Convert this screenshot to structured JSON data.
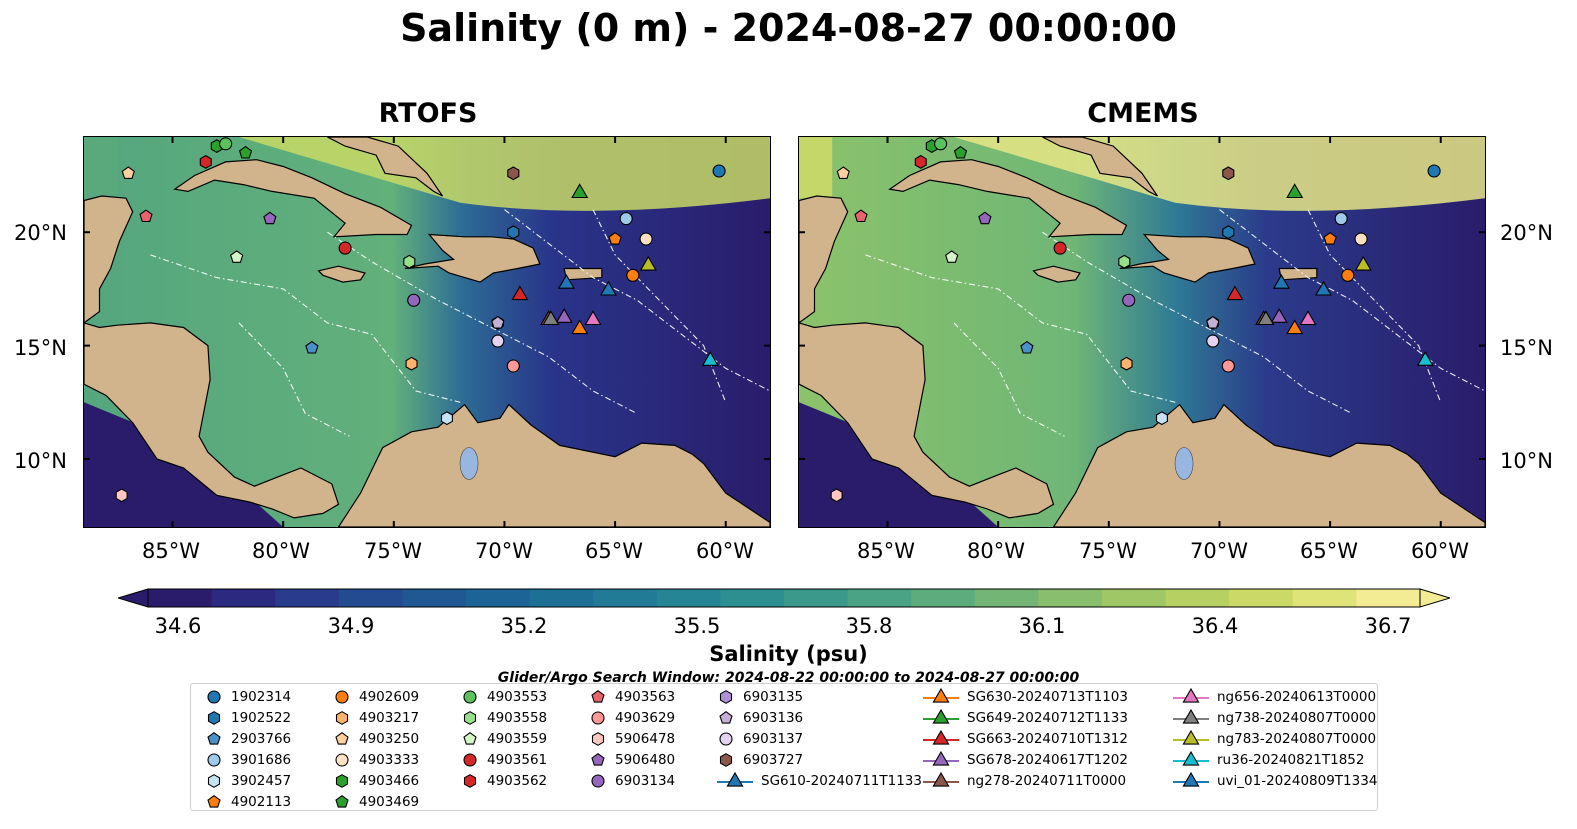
{
  "title": "Salinity (0 m) - 2024-08-27 00:00:00",
  "panels": [
    {
      "title": "RTOFS"
    },
    {
      "title": "CMEMS"
    }
  ],
  "axes": {
    "lat_labels": [
      "20°N",
      "15°N",
      "10°N"
    ],
    "lon_labels": [
      "85°W",
      "80°W",
      "75°W",
      "70°W",
      "65°W",
      "60°W"
    ]
  },
  "colorbar": {
    "label": "Salinity (psu)",
    "ticks": [
      "34.6",
      "34.9",
      "35.2",
      "35.5",
      "35.8",
      "36.1",
      "36.4",
      "36.7"
    ],
    "colors": [
      "#2a1c6b",
      "#2b2a80",
      "#283b8c",
      "#234b91",
      "#1f5893",
      "#1c6495",
      "#1d6f96",
      "#217a96",
      "#268594",
      "#2e8f90",
      "#3a998b",
      "#4aa384",
      "#5dac7d",
      "#72b574",
      "#88be6c",
      "#9fc765",
      "#b6d062",
      "#cbda66",
      "#dfe478",
      "#f3ec94"
    ]
  },
  "search_window": "Glider/Argo Search Window: 2024-08-22 00:00:00 to 2024-08-27 00:00:00",
  "legend": [
    {
      "label": "1902314",
      "marker": "circle",
      "color": "#1f77b4"
    },
    {
      "label": "1902522",
      "marker": "hexagon",
      "color": "#1f77b4"
    },
    {
      "label": "2903766",
      "marker": "pentagon",
      "color": "#4a90c9"
    },
    {
      "label": "3901686",
      "marker": "circle",
      "color": "#9ecae9"
    },
    {
      "label": "3902457",
      "marker": "hexagon",
      "color": "#c6e2f5"
    },
    {
      "label": "4902113",
      "marker": "pentagon",
      "color": "#ff7f0e"
    },
    {
      "label": "4902609",
      "marker": "circle",
      "color": "#ff7f0e"
    },
    {
      "label": "4903217",
      "marker": "hexagon",
      "color": "#ffb26b"
    },
    {
      "label": "4903250",
      "marker": "pentagon",
      "color": "#ffcfa0"
    },
    {
      "label": "4903333",
      "marker": "circle",
      "color": "#ffe0c2"
    },
    {
      "label": "4903466",
      "marker": "hexagon",
      "color": "#2ca02c"
    },
    {
      "label": "4903469",
      "marker": "pentagon",
      "color": "#2ca02c"
    },
    {
      "label": "4903553",
      "marker": "circle",
      "color": "#5cc35c"
    },
    {
      "label": "4903558",
      "marker": "hexagon",
      "color": "#98df8a"
    },
    {
      "label": "4903559",
      "marker": "pentagon",
      "color": "#d5f5c9"
    },
    {
      "label": "4903561",
      "marker": "circle",
      "color": "#d62728"
    },
    {
      "label": "4903562",
      "marker": "hexagon",
      "color": "#d62728"
    },
    {
      "label": "4903563",
      "marker": "pentagon",
      "color": "#e6636a"
    },
    {
      "label": "4903629",
      "marker": "circle",
      "color": "#ff9896"
    },
    {
      "label": "5906478",
      "marker": "hexagon",
      "color": "#ffc6c2"
    },
    {
      "label": "5906480",
      "marker": "pentagon",
      "color": "#9467bd"
    },
    {
      "label": "6903134",
      "marker": "circle",
      "color": "#9467bd"
    },
    {
      "label": "6903135",
      "marker": "hexagon",
      "color": "#b08fd6"
    },
    {
      "label": "6903136",
      "marker": "pentagon",
      "color": "#c5b0d5"
    },
    {
      "label": "6903137",
      "marker": "circle",
      "color": "#e3d2f0"
    },
    {
      "label": "6903727",
      "marker": "hexagon",
      "color": "#8c564b"
    },
    {
      "label": "SG610-20240711T1133",
      "marker": "triangle",
      "color": "#1f77b4"
    },
    {
      "label": "SG630-20240713T1103",
      "marker": "triangle",
      "color": "#ff7f0e"
    },
    {
      "label": "SG649-20240712T1133",
      "marker": "triangle",
      "color": "#2ca02c"
    },
    {
      "label": "SG663-20240710T1312",
      "marker": "triangle",
      "color": "#d62728"
    },
    {
      "label": "SG678-20240617T1202",
      "marker": "triangle",
      "color": "#9467bd"
    },
    {
      "label": "ng278-20240711T0000",
      "marker": "triangle",
      "color": "#8c564b"
    },
    {
      "label": "ng656-20240613T0000",
      "marker": "triangle",
      "color": "#e377c2"
    },
    {
      "label": "ng738-20240807T0000",
      "marker": "triangle",
      "color": "#7f7f7f"
    },
    {
      "label": "ng783-20240807T0000",
      "marker": "triangle",
      "color": "#bcbd22"
    },
    {
      "label": "ru36-20240821T1852",
      "marker": "triangle",
      "color": "#17becf"
    },
    {
      "label": "uvi_01-20240809T1334",
      "marker": "triangle",
      "color": "#1f77b4"
    }
  ],
  "stations": [
    {
      "id": "1902314",
      "lon": -60.3,
      "lat": 22.7
    },
    {
      "id": "1902522",
      "lon": -69.6,
      "lat": 20.0
    },
    {
      "id": "2903766",
      "lon": -78.7,
      "lat": 14.9
    },
    {
      "id": "3901686",
      "lon": -64.5,
      "lat": 20.6
    },
    {
      "id": "3902457",
      "lon": -72.6,
      "lat": 11.8
    },
    {
      "id": "4902113",
      "lon": -65.0,
      "lat": 19.7
    },
    {
      "id": "4902609",
      "lon": -64.2,
      "lat": 18.1
    },
    {
      "id": "4903217",
      "lon": -74.2,
      "lat": 14.2
    },
    {
      "id": "4903250",
      "lon": -87.0,
      "lat": 22.6
    },
    {
      "id": "4903333",
      "lon": -63.6,
      "lat": 19.7
    },
    {
      "id": "4903466",
      "lon": -83.0,
      "lat": 23.8
    },
    {
      "id": "4903469",
      "lon": -81.7,
      "lat": 23.5
    },
    {
      "id": "4903553",
      "lon": -82.6,
      "lat": 23.9
    },
    {
      "id": "4903558",
      "lon": -74.3,
      "lat": 18.7
    },
    {
      "id": "4903559",
      "lon": -82.1,
      "lat": 18.9
    },
    {
      "id": "4903561",
      "lon": -77.2,
      "lat": 19.3
    },
    {
      "id": "4903562",
      "lon": -83.5,
      "lat": 23.1
    },
    {
      "id": "4903563",
      "lon": -86.2,
      "lat": 20.7
    },
    {
      "id": "4903629",
      "lon": -69.6,
      "lat": 14.1
    },
    {
      "id": "5906478",
      "lon": -87.3,
      "lat": 8.4
    },
    {
      "id": "5906480",
      "lon": -80.6,
      "lat": 20.6
    },
    {
      "id": "6903134",
      "lon": -74.1,
      "lat": 17.0
    },
    {
      "id": "6903135",
      "lon": -70.3,
      "lat": 16.0
    },
    {
      "id": "6903136",
      "lon": -70.3,
      "lat": 16.0
    },
    {
      "id": "6903137",
      "lon": -70.3,
      "lat": 15.2
    },
    {
      "id": "6903727",
      "lon": -69.6,
      "lat": 22.6
    }
  ],
  "gliders": [
    {
      "id": "SG610-20240711T1133",
      "lon": -67.2,
      "lat": 17.8
    },
    {
      "id": "SG630-20240713T1103",
      "lon": -66.6,
      "lat": 15.8
    },
    {
      "id": "SG649-20240712T1133",
      "lon": -66.6,
      "lat": 21.8
    },
    {
      "id": "SG663-20240710T1312",
      "lon": -69.3,
      "lat": 17.3
    },
    {
      "id": "SG678-20240617T1202",
      "lon": -67.3,
      "lat": 16.3
    },
    {
      "id": "ng278-20240711T0000",
      "lon": -68.0,
      "lat": 16.2
    },
    {
      "id": "ng656-20240613T0000",
      "lon": -66.0,
      "lat": 16.2
    },
    {
      "id": "ng738-20240807T0000",
      "lon": -67.9,
      "lat": 16.2
    },
    {
      "id": "ng783-20240807T0000",
      "lon": -63.5,
      "lat": 18.6
    },
    {
      "id": "ru36-20240821T1852",
      "lon": -60.7,
      "lat": 14.4
    },
    {
      "id": "uvi_01-20240809T1334",
      "lon": -65.3,
      "lat": 17.5
    }
  ]
}
